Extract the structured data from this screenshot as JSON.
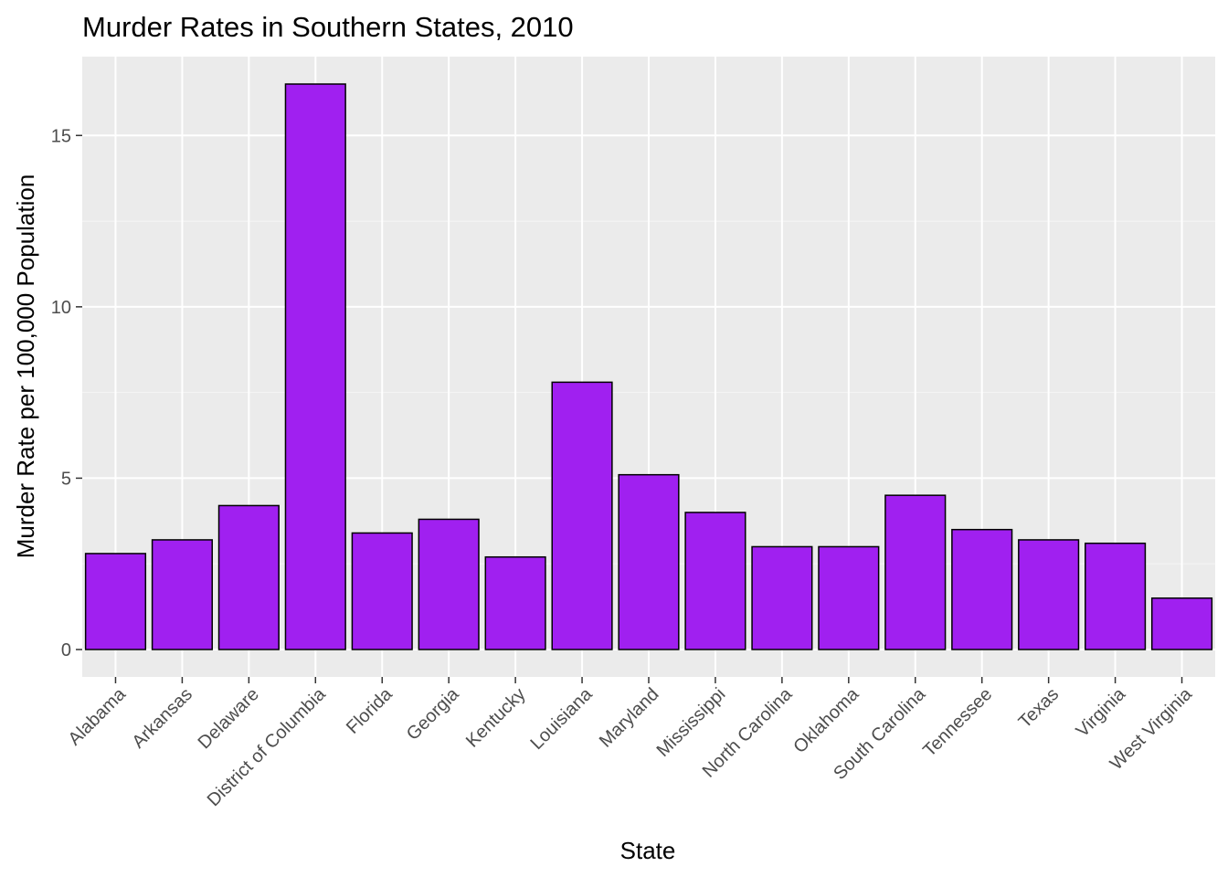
{
  "chart_data": {
    "type": "bar",
    "title": "Murder Rates in Southern States, 2010",
    "xlabel": "State",
    "ylabel": "Murder Rate per 100,000 Population",
    "categories": [
      "Alabama",
      "Arkansas",
      "Delaware",
      "District of Columbia",
      "Florida",
      "Georgia",
      "Kentucky",
      "Louisiana",
      "Maryland",
      "Mississippi",
      "North Carolina",
      "Oklahoma",
      "South Carolina",
      "Tennessee",
      "Texas",
      "Virginia",
      "West Virginia"
    ],
    "values": [
      2.8,
      3.2,
      4.2,
      16.5,
      3.4,
      3.8,
      2.7,
      7.8,
      5.1,
      4.0,
      3.0,
      3.0,
      4.5,
      3.5,
      3.2,
      3.1,
      1.5
    ],
    "ylim": [
      -0.8,
      17.3
    ],
    "yticks": [
      0,
      5,
      10,
      15
    ],
    "ytick_labels": [
      "0",
      "5",
      "10",
      "15"
    ],
    "grid": true,
    "colors": {
      "bar_fill": "#a020f0",
      "bar_stroke": "#000000",
      "panel_background": "#ebebeb",
      "grid_major": "#ffffff",
      "grid_minor": "#f5f5f5",
      "tick_mark": "#333333"
    }
  }
}
